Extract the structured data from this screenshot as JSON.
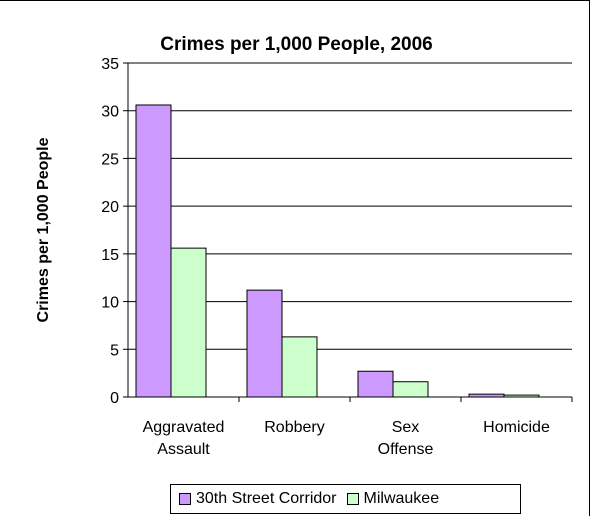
{
  "chart_data": {
    "type": "bar",
    "title": "Crimes per 1,000 People, 2006",
    "xlabel": "",
    "ylabel": "Crimes per 1,000 People",
    "ylim": [
      0,
      35
    ],
    "yticks": [
      0,
      5,
      10,
      15,
      20,
      25,
      30,
      35
    ],
    "grid": true,
    "legend_position": "bottom",
    "categories": [
      [
        "Aggravated",
        "Assault"
      ],
      [
        "Robbery"
      ],
      [
        "Sex",
        "Offense"
      ],
      [
        "Homicide"
      ]
    ],
    "series": [
      {
        "name": "30th Street Corridor",
        "color": "#cc99ff",
        "values": [
          30.6,
          11.2,
          2.7,
          0.3
        ]
      },
      {
        "name": "Milwaukee",
        "color": "#ccffcc",
        "values": [
          15.6,
          6.3,
          1.6,
          0.2
        ]
      }
    ]
  }
}
